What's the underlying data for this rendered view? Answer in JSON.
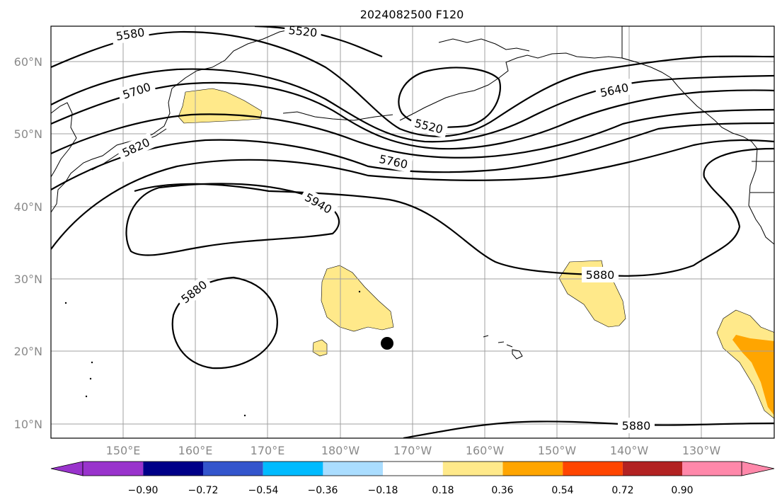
{
  "title": "2024082500 F120",
  "lat_labels": [
    "60°N",
    "50°N",
    "40°N",
    "30°N",
    "20°N",
    "10°N"
  ],
  "lon_labels": [
    "150°E",
    "160°E",
    "170°E",
    "180°W",
    "170°W",
    "160°W",
    "150°W",
    "140°W",
    "130°W"
  ],
  "contour_labels": [
    "5580",
    "5520",
    "5700",
    "5520",
    "5640",
    "5820",
    "5760",
    "5940",
    "5880",
    "5880",
    "5880"
  ],
  "colorbar": {
    "ticks": [
      "−0.90",
      "−0.72",
      "−0.54",
      "−0.36",
      "−0.18",
      "0.18",
      "0.36",
      "0.54",
      "0.72",
      "0.90"
    ],
    "colors": [
      "#9933cc",
      "#000088",
      "#3355cc",
      "#00bbff",
      "#aaddff",
      "#ffffff",
      "#ffe98a",
      "#ffa500",
      "#ff4500",
      "#b22222",
      "#ff88aa"
    ]
  },
  "colors": {
    "contour": "#000000",
    "grid": "#a0a0a0",
    "marker": "#000000"
  }
}
